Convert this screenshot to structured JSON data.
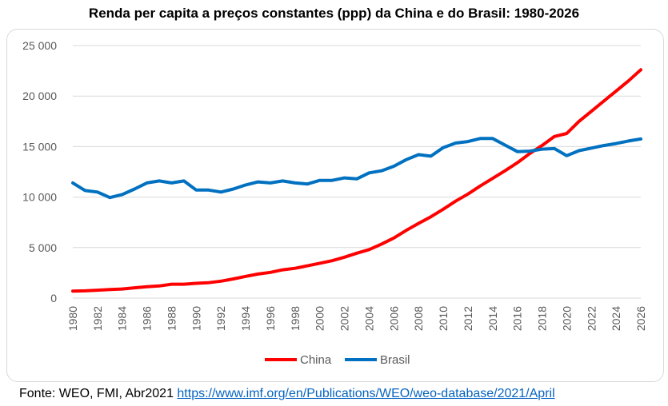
{
  "chart_data": {
    "type": "line",
    "title": "Renda per capita a preços constantes (ppp) da China e do Brasil: 1980-2026",
    "xlabel": "",
    "ylabel": "",
    "ylim": [
      0,
      25000
    ],
    "y_ticks": [
      "25 000",
      "20 000",
      "15 000",
      "10 000",
      "5 000",
      "0"
    ],
    "y_tick_values": [
      25000,
      20000,
      15000,
      10000,
      5000,
      0
    ],
    "x_ticks": [
      "1980",
      "1982",
      "1984",
      "1986",
      "1988",
      "1990",
      "1992",
      "1994",
      "1996",
      "1998",
      "2000",
      "2002",
      "2004",
      "2006",
      "2008",
      "2010",
      "2012",
      "2014",
      "2016",
      "2018",
      "2020",
      "2022",
      "2024",
      "2026"
    ],
    "x": [
      1980,
      1981,
      1982,
      1983,
      1984,
      1985,
      1986,
      1987,
      1988,
      1989,
      1990,
      1991,
      1992,
      1993,
      1994,
      1995,
      1996,
      1997,
      1998,
      1999,
      2000,
      2001,
      2002,
      2003,
      2004,
      2005,
      2006,
      2007,
      2008,
      2009,
      2010,
      2011,
      2012,
      2013,
      2014,
      2015,
      2016,
      2017,
      2018,
      2019,
      2020,
      2021,
      2022,
      2023,
      2024,
      2025,
      2026
    ],
    "grid": true,
    "legend_position": "bottom",
    "series": [
      {
        "name": "China",
        "color": "#ff0000",
        "values": [
          700,
          720,
          780,
          850,
          900,
          1020,
          1120,
          1200,
          1380,
          1380,
          1460,
          1530,
          1680,
          1900,
          2150,
          2380,
          2550,
          2800,
          2950,
          3200,
          3450,
          3700,
          4050,
          4450,
          4800,
          5350,
          5950,
          6700,
          7400,
          8050,
          8800,
          9600,
          10300,
          11100,
          11850,
          12600,
          13400,
          14300,
          15100,
          16000,
          16300,
          17500,
          18500,
          19500,
          20500,
          21500,
          22600
        ]
      },
      {
        "name": "Brasil",
        "color": "#0070c0",
        "values": [
          11400,
          10650,
          10500,
          9950,
          10250,
          10800,
          11400,
          11600,
          11400,
          11600,
          10700,
          10700,
          10500,
          10800,
          11200,
          11500,
          11400,
          11600,
          11400,
          11300,
          11650,
          11650,
          11900,
          11800,
          12400,
          12600,
          13050,
          13700,
          14200,
          14050,
          14900,
          15350,
          15500,
          15800,
          15800,
          15150,
          14500,
          14550,
          14750,
          14800,
          14100,
          14600,
          14850,
          15100,
          15300,
          15550,
          15750
        ]
      }
    ]
  },
  "source": {
    "prefix": "Fonte: WEO, FMI, Abr2021 ",
    "link_text": "https://www.imf.org/en/Publications/WEO/weo-database/2021/April"
  }
}
